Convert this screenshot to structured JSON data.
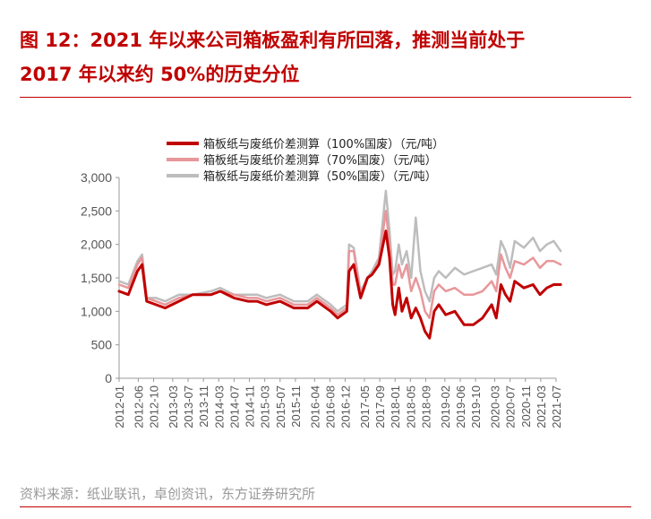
{
  "title_lines": [
    "图 12：2021 年以来公司箱板盈利有所回落，推测当前处于",
    "2017 年以来约 50%的历史分位"
  ],
  "source": "资料来源：纸业联讯，卓创资讯，东方证券研究所",
  "colors": {
    "title": "#c00000",
    "s100": "#c00000",
    "s70": "#e8979a",
    "s50": "#bdbdbd"
  },
  "chart_data": {
    "type": "line",
    "title": "图 12：2021 年以来公司箱板盈利有所回落，推测当前处于2017 年以来约 50%的历史分位",
    "ylim": [
      0,
      3000
    ],
    "yticks": [
      "0",
      "500",
      "1,000",
      "1,500",
      "2,000",
      "2,500",
      "3,000"
    ],
    "xlim": [
      "2012-01",
      "2021-07"
    ],
    "xticks": [
      "2012-01",
      "2012-06",
      "2012-10",
      "2013-03",
      "2013-07",
      "2013-11",
      "2014-03",
      "2014-07",
      "2014-11",
      "2015-03",
      "2015-07",
      "2015-11",
      "2016-04",
      "2016-08",
      "2016-12",
      "2017-05",
      "2017-09",
      "2018-01",
      "2018-05",
      "2018-09",
      "2019-02",
      "2019-06",
      "2019-10",
      "2020-03",
      "2020-07",
      "2020-11",
      "2021-03",
      "2021-07"
    ],
    "legend_position": "top",
    "grid": false,
    "x": [
      2012.0,
      2012.2,
      2012.4,
      2012.5,
      2012.6,
      2012.8,
      2013.0,
      2013.3,
      2013.6,
      2014.0,
      2014.2,
      2014.5,
      2014.8,
      2015.0,
      2015.2,
      2015.5,
      2015.8,
      2016.1,
      2016.3,
      2016.6,
      2016.75,
      2016.95,
      2017.0,
      2017.1,
      2017.25,
      2017.4,
      2017.5,
      2017.65,
      2017.8,
      2017.88,
      2017.95,
      2018.0,
      2018.08,
      2018.15,
      2018.25,
      2018.35,
      2018.45,
      2018.55,
      2018.65,
      2018.75,
      2018.85,
      2018.95,
      2019.1,
      2019.3,
      2019.5,
      2019.7,
      2019.9,
      2020.1,
      2020.2,
      2020.3,
      2020.4,
      2020.5,
      2020.6,
      2020.8,
      2021.0,
      2021.15,
      2021.3,
      2021.45,
      2021.6
    ],
    "series": [
      {
        "name": "箱板纸与废纸价差测算（100%国废）（元/吨）",
        "values": [
          1300,
          1250,
          1600,
          1700,
          1150,
          1100,
          1050,
          1150,
          1250,
          1250,
          1300,
          1200,
          1150,
          1150,
          1100,
          1150,
          1050,
          1050,
          1150,
          1000,
          900,
          1000,
          1600,
          1700,
          1200,
          1500,
          1550,
          1700,
          2200,
          1800,
          1100,
          950,
          1350,
          1000,
          1200,
          900,
          1050,
          900,
          700,
          600,
          1000,
          1100,
          950,
          1000,
          800,
          800,
          900,
          1100,
          900,
          1400,
          1250,
          1150,
          1450,
          1350,
          1400,
          1250,
          1350,
          1400,
          1400
        ]
      },
      {
        "name": "箱板纸与废纸价差测算（70%国废）（元/吨）",
        "values": [
          1400,
          1350,
          1700,
          1800,
          1200,
          1150,
          1100,
          1200,
          1250,
          1250,
          1300,
          1250,
          1200,
          1200,
          1150,
          1200,
          1100,
          1100,
          1200,
          1050,
          950,
          1050,
          1900,
          1900,
          1250,
          1500,
          1550,
          1750,
          2500,
          2000,
          1400,
          1400,
          1700,
          1500,
          1700,
          1300,
          1500,
          1300,
          1000,
          900,
          1300,
          1400,
          1300,
          1350,
          1250,
          1250,
          1300,
          1450,
          1300,
          1850,
          1650,
          1500,
          1750,
          1700,
          1800,
          1650,
          1750,
          1750,
          1700
        ]
      },
      {
        "name": "箱板纸与废纸价差测算（50%国废）（元/吨）",
        "values": [
          1450,
          1400,
          1750,
          1850,
          1200,
          1200,
          1150,
          1250,
          1250,
          1300,
          1350,
          1250,
          1250,
          1250,
          1200,
          1250,
          1150,
          1150,
          1250,
          1100,
          1000,
          1100,
          2000,
          1950,
          1300,
          1500,
          1600,
          1800,
          2800,
          2200,
          1550,
          1600,
          2000,
          1700,
          1900,
          1500,
          2400,
          1600,
          1300,
          1150,
          1500,
          1600,
          1500,
          1650,
          1550,
          1600,
          1650,
          1700,
          1550,
          2050,
          1900,
          1650,
          2050,
          1950,
          2100,
          1900,
          2000,
          2050,
          1900
        ]
      }
    ]
  }
}
